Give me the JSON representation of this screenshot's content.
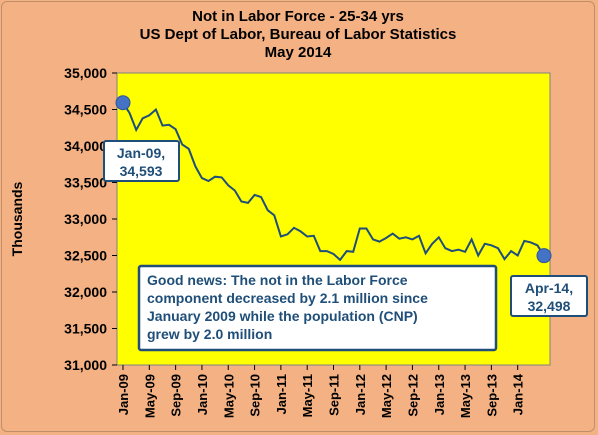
{
  "chart_data": {
    "type": "line",
    "title": [
      "Not in Labor Force - 25-34 yrs",
      "US Dept of Labor, Bureau of Labor Statistics",
      "May 2014"
    ],
    "ylabel": "Thousands",
    "xlabel": "",
    "ylim": [
      31000,
      35000
    ],
    "yticks": [
      "31,000",
      "31,500",
      "32,000",
      "32,500",
      "33,000",
      "33,500",
      "34,000",
      "34,500",
      "35,000"
    ],
    "ytick_values": [
      31000,
      31500,
      32000,
      32500,
      33000,
      33500,
      34000,
      34500,
      35000
    ],
    "xtick_labels": [
      "Jan-09",
      "May-09",
      "Sep-09",
      "Jan-10",
      "May-10",
      "Sep-10",
      "Jan-11",
      "May-11",
      "Sep-11",
      "Jan-12",
      "May-12",
      "Sep-12",
      "Jan-13",
      "May-13",
      "Sep-13",
      "Jan-14"
    ],
    "grid": false,
    "start_month": "Jan-09",
    "end_month": "Apr-14",
    "series": [
      {
        "values": [
          34593,
          34450,
          34220,
          34380,
          34420,
          34500,
          34280,
          34290,
          34230,
          34020,
          33960,
          33720,
          33560,
          33520,
          33580,
          33570,
          33460,
          33390,
          33240,
          33220,
          33330,
          33300,
          33120,
          33050,
          32760,
          32790,
          32880,
          32830,
          32760,
          32770,
          32560,
          32560,
          32520,
          32440,
          32560,
          32550,
          32870,
          32870,
          32720,
          32690,
          32740,
          32800,
          32730,
          32750,
          32720,
          32770,
          32530,
          32660,
          32750,
          32600,
          32560,
          32580,
          32550,
          32720,
          32500,
          32660,
          32640,
          32600,
          32450,
          32560,
          32500,
          32700,
          32680,
          32640,
          32498
        ]
      }
    ],
    "colors": {
      "line": "#1f4e79",
      "plot_bg": "#ffff00",
      "marker": "#4472c4",
      "page_bg": "#f4b183"
    },
    "annotations": {
      "start_label": [
        "Jan-09,",
        "34,593"
      ],
      "end_label": [
        "Apr-14,",
        "32,498"
      ],
      "note": [
        "Good news: The not in the Labor Force",
        "component decreased by 2.1 million since",
        "January  2009 while the population (CNP)",
        "grew by 2.0 million"
      ]
    }
  }
}
